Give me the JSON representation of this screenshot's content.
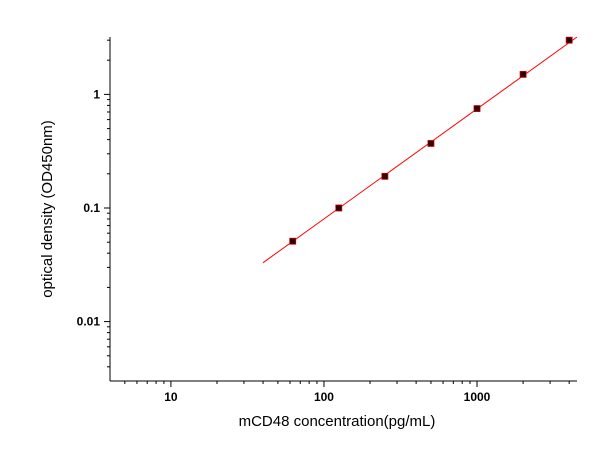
{
  "chart_data": {
    "type": "scatter",
    "xlabel": "mCD48 concentration(pg/mL)",
    "ylabel": "optical density (OD450nm)",
    "xscale": "log",
    "yscale": "log",
    "xlim": [
      4,
      4500
    ],
    "ylim": [
      0.003,
      3.2
    ],
    "xticks": [
      10,
      100,
      1000
    ],
    "yticks": [
      0.01,
      0.1,
      1
    ],
    "xminorticks": [
      5,
      6,
      7,
      8,
      9,
      20,
      30,
      40,
      50,
      60,
      70,
      80,
      90,
      200,
      300,
      400,
      500,
      600,
      700,
      800,
      900,
      2000,
      3000,
      4000
    ],
    "yminorticks": [
      0.004,
      0.005,
      0.006,
      0.007,
      0.008,
      0.009,
      0.02,
      0.03,
      0.04,
      0.05,
      0.06,
      0.07,
      0.08,
      0.09,
      0.2,
      0.3,
      0.4,
      0.5,
      0.6,
      0.7,
      0.8,
      0.9,
      2,
      3
    ],
    "series": [
      {
        "kind": "points",
        "color": "#2a0000",
        "edge_color": "#cc0000",
        "x": [
          62.5,
          125,
          250,
          500,
          1000,
          2000,
          4000
        ],
        "values": [
          0.051,
          0.1,
          0.19,
          0.37,
          0.75,
          1.5,
          3.0
        ]
      },
      {
        "kind": "line",
        "color": "#ff0000",
        "x": [
          40,
          4500
        ],
        "values": [
          0.033,
          3.2
        ]
      }
    ]
  }
}
